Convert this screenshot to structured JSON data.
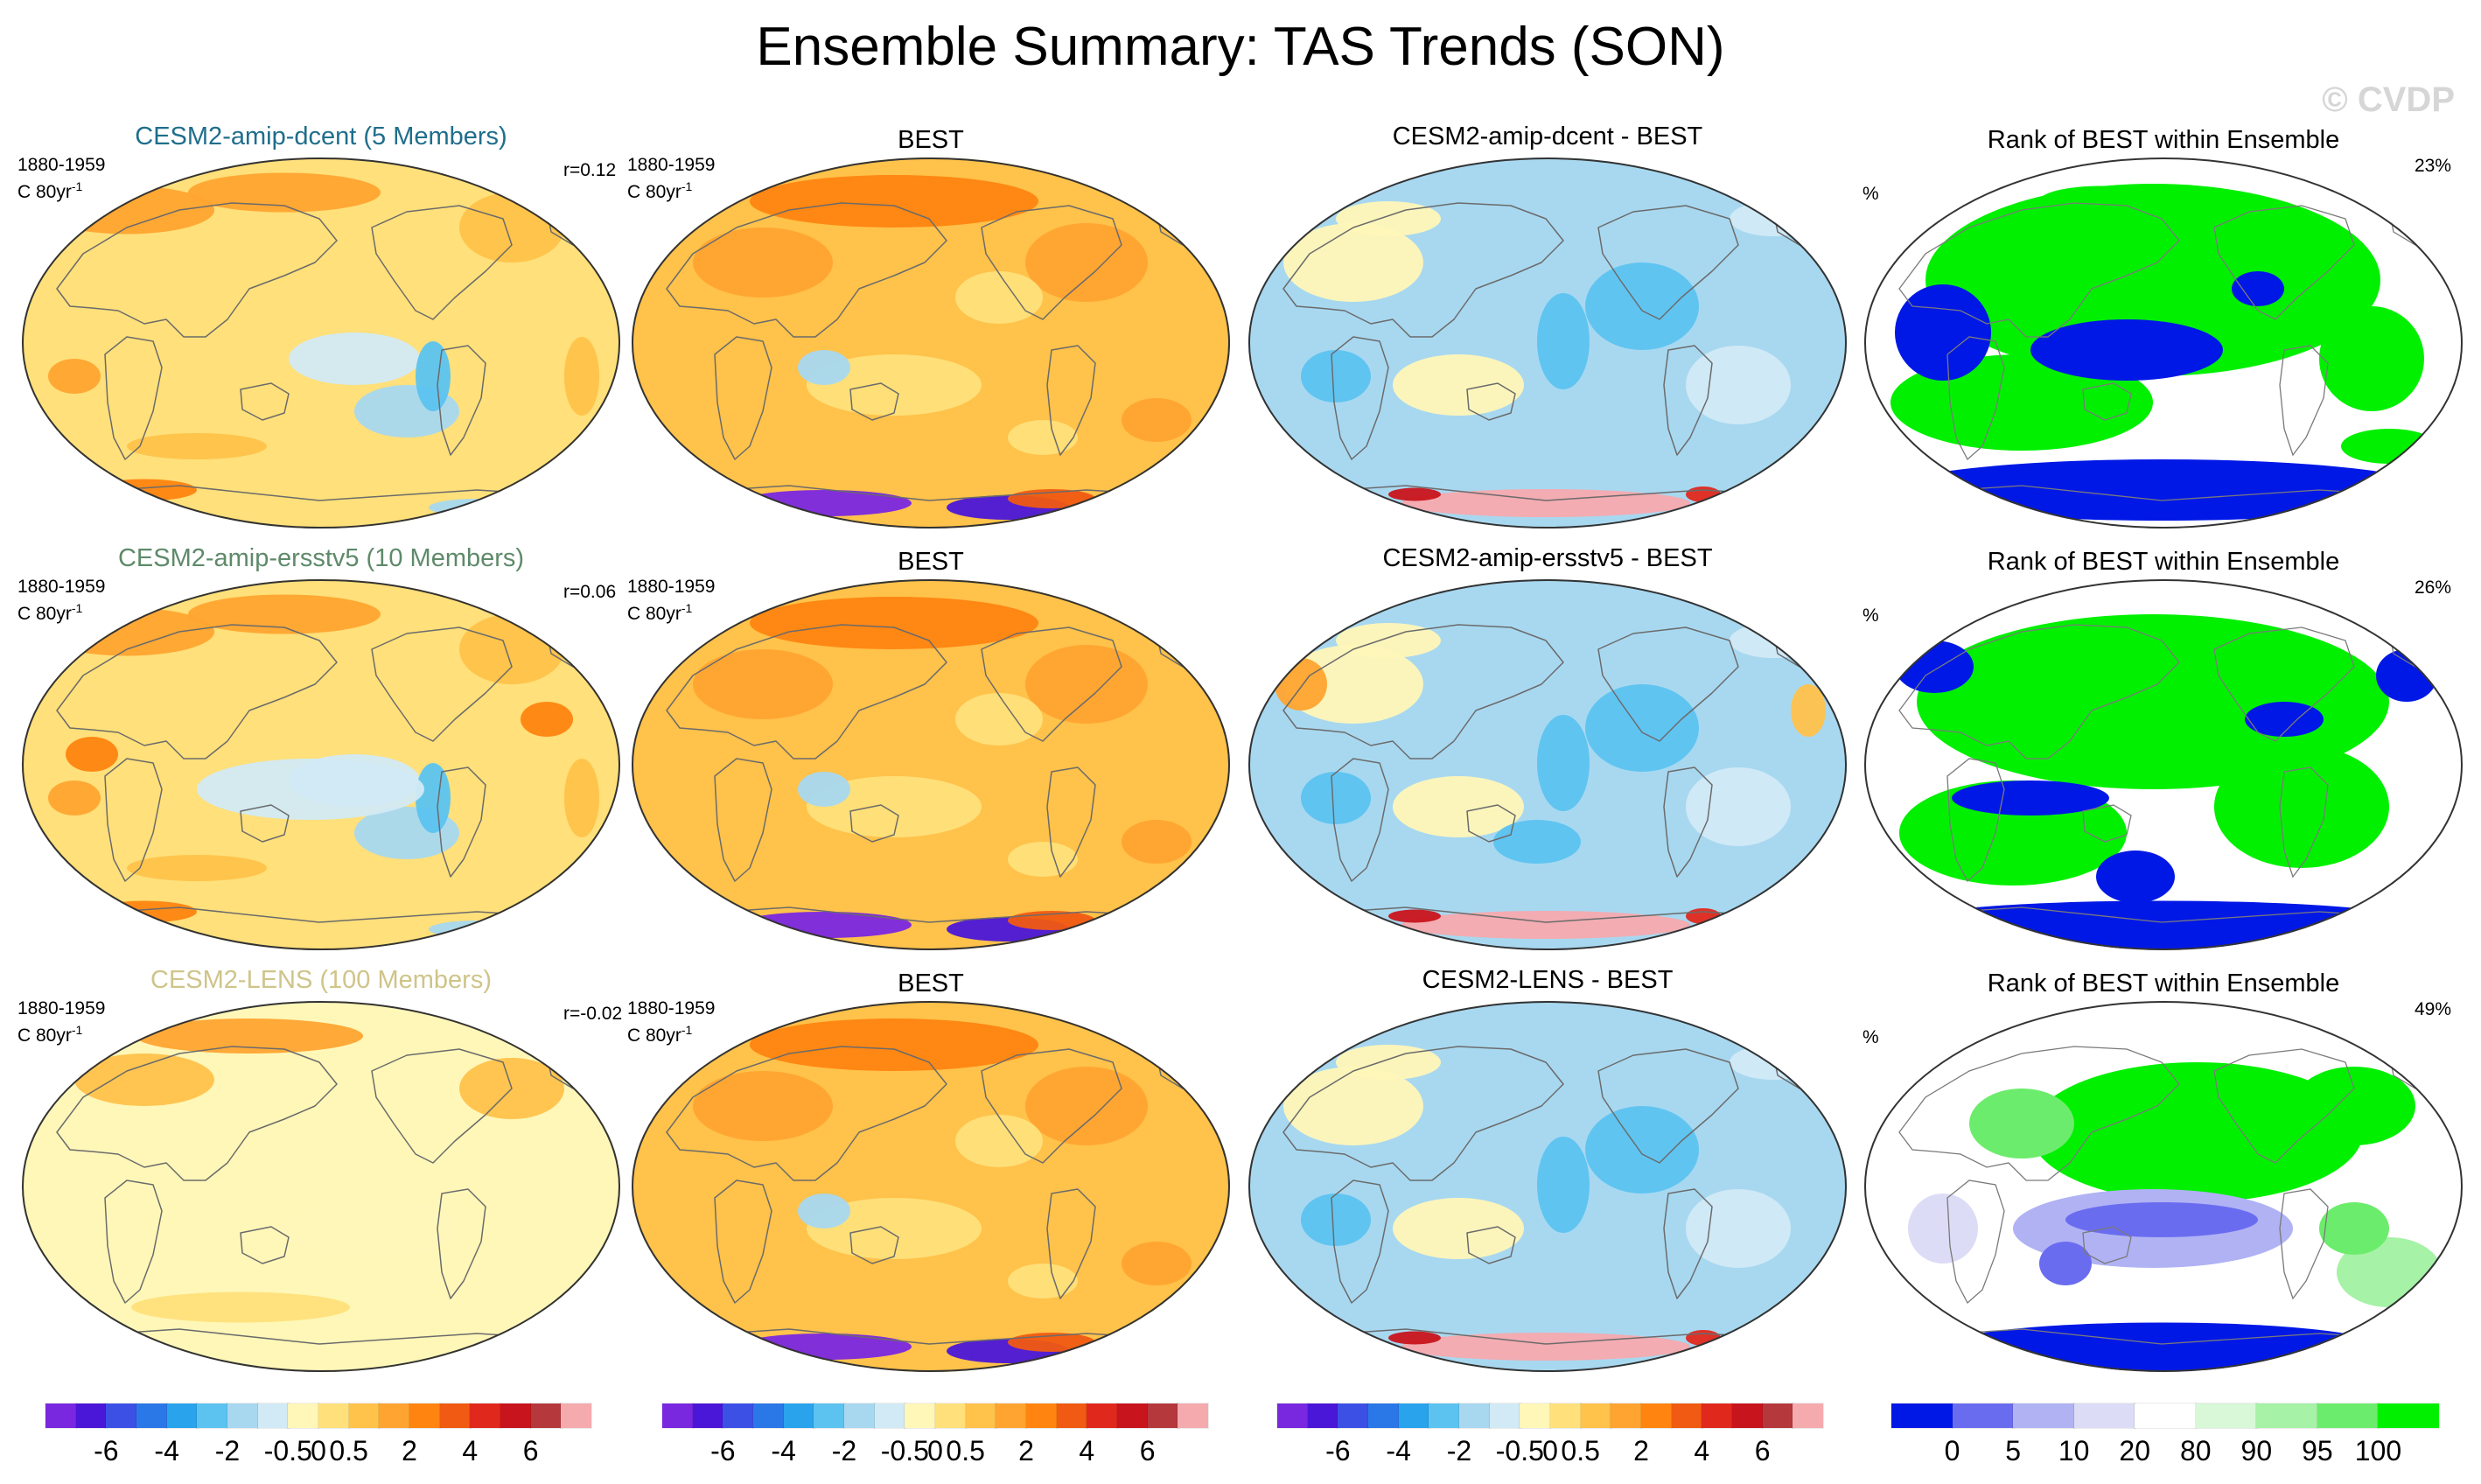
{
  "title": "Ensemble Summary: TAS Trends (SON)",
  "watermark": "© CVDP",
  "period": "1880-1959",
  "units": "C 80yr",
  "units_sup": "-1",
  "percent_label": "%",
  "rows": [
    {
      "ens_title": "CESM2-amip-dcent (5 Members)",
      "ens_color": "#1f6e8c",
      "r": "r=0.12",
      "obs_title": "BEST",
      "diff_title": "CESM2-amip-dcent - BEST",
      "rank_title": "Rank of BEST within Ensemble",
      "rank_pct": "23%"
    },
    {
      "ens_title": "CESM2-amip-ersstv5 (10 Members)",
      "ens_color": "#5e8a6a",
      "r": "r=0.06",
      "obs_title": "BEST",
      "diff_title": "CESM2-amip-ersstv5 - BEST",
      "rank_title": "Rank of BEST within Ensemble",
      "rank_pct": "26%"
    },
    {
      "ens_title": "CESM2-LENS (100 Members)",
      "ens_color": "#cfc48a",
      "r": "r=-0.02",
      "obs_title": "BEST",
      "diff_title": "CESM2-LENS - BEST",
      "rank_title": "Rank of BEST within Ensemble",
      "rank_pct": "49%"
    }
  ],
  "colors": {
    "trend_scale": [
      "#7a27e0",
      "#4a16d8",
      "#3c50e6",
      "#2a78e8",
      "#29a3ec",
      "#5cc3f0",
      "#a8d8f0",
      "#d2eaf5",
      "#fff7b8",
      "#ffe07a",
      "#ffc24a",
      "#ffa430",
      "#ff8410",
      "#f05a12",
      "#e0281c",
      "#c8141c",
      "#b5383c",
      "#f5aaae"
    ],
    "rank_scale": [
      "#0018e6",
      "#6a6cf0",
      "#b0b2f4",
      "#dcdcf6",
      "#ffffff",
      "#d8f8d8",
      "#a6f2a6",
      "#6cec6c",
      "#00f000"
    ]
  },
  "colorbars": {
    "trend_labels": [
      "-6",
      "-4",
      "-2",
      "-0.5",
      "0",
      "0.5",
      "2",
      "4",
      "6"
    ],
    "rank_labels": [
      "0",
      "5",
      "10",
      "20",
      "80",
      "90",
      "95",
      "100"
    ]
  },
  "chart_data": [
    {
      "type": "heatmap",
      "title": "CESM2-amip-dcent (5 Members)",
      "subtitle": "1880-1959, C 80yr-1",
      "annotation": "r=0.12",
      "variable": "TAS trend",
      "season": "SON",
      "units": "C 80yr-1",
      "legend": "bottom",
      "colorbar_ticks": [
        -6,
        -4,
        -2,
        -0.5,
        0,
        0.5,
        2,
        4,
        6
      ]
    },
    {
      "type": "heatmap",
      "title": "BEST",
      "subtitle": "1880-1959, C 80yr-1",
      "variable": "TAS trend",
      "season": "SON",
      "units": "C 80yr-1",
      "colorbar_ticks": [
        -6,
        -4,
        -2,
        -0.5,
        0,
        0.5,
        2,
        4,
        6
      ]
    },
    {
      "type": "heatmap",
      "title": "CESM2-amip-dcent - BEST",
      "variable": "TAS trend difference",
      "season": "SON",
      "colorbar_ticks": [
        -6,
        -4,
        -2,
        -0.5,
        0,
        0.5,
        2,
        4,
        6
      ]
    },
    {
      "type": "heatmap",
      "title": "Rank of BEST within Ensemble",
      "units": "%",
      "annotation": "23%",
      "colorbar_ticks": [
        0,
        5,
        10,
        20,
        80,
        90,
        95,
        100
      ]
    },
    {
      "type": "heatmap",
      "title": "CESM2-amip-ersstv5 (10 Members)",
      "subtitle": "1880-1959, C 80yr-1",
      "annotation": "r=0.06",
      "variable": "TAS trend",
      "season": "SON",
      "units": "C 80yr-1",
      "colorbar_ticks": [
        -6,
        -4,
        -2,
        -0.5,
        0,
        0.5,
        2,
        4,
        6
      ]
    },
    {
      "type": "heatmap",
      "title": "BEST",
      "subtitle": "1880-1959, C 80yr-1",
      "variable": "TAS trend",
      "season": "SON",
      "units": "C 80yr-1",
      "colorbar_ticks": [
        -6,
        -4,
        -2,
        -0.5,
        0,
        0.5,
        2,
        4,
        6
      ]
    },
    {
      "type": "heatmap",
      "title": "CESM2-amip-ersstv5 - BEST",
      "variable": "TAS trend difference",
      "season": "SON",
      "colorbar_ticks": [
        -6,
        -4,
        -2,
        -0.5,
        0,
        0.5,
        2,
        4,
        6
      ]
    },
    {
      "type": "heatmap",
      "title": "Rank of BEST within Ensemble",
      "units": "%",
      "annotation": "26%",
      "colorbar_ticks": [
        0,
        5,
        10,
        20,
        80,
        90,
        95,
        100
      ]
    },
    {
      "type": "heatmap",
      "title": "CESM2-LENS (100 Members)",
      "subtitle": "1880-1959, C 80yr-1",
      "annotation": "r=-0.02",
      "variable": "TAS trend",
      "season": "SON",
      "units": "C 80yr-1",
      "colorbar_ticks": [
        -6,
        -4,
        -2,
        -0.5,
        0,
        0.5,
        2,
        4,
        6
      ]
    },
    {
      "type": "heatmap",
      "title": "BEST",
      "subtitle": "1880-1959, C 80yr-1",
      "variable": "TAS trend",
      "season": "SON",
      "units": "C 80yr-1",
      "colorbar_ticks": [
        -6,
        -4,
        -2,
        -0.5,
        0,
        0.5,
        2,
        4,
        6
      ]
    },
    {
      "type": "heatmap",
      "title": "CESM2-LENS - BEST",
      "variable": "TAS trend difference",
      "season": "SON",
      "colorbar_ticks": [
        -6,
        -4,
        -2,
        -0.5,
        0,
        0.5,
        2,
        4,
        6
      ]
    },
    {
      "type": "heatmap",
      "title": "Rank of BEST within Ensemble",
      "units": "%",
      "annotation": "49%",
      "colorbar_ticks": [
        0,
        5,
        10,
        20,
        80,
        90,
        95,
        100
      ]
    }
  ]
}
